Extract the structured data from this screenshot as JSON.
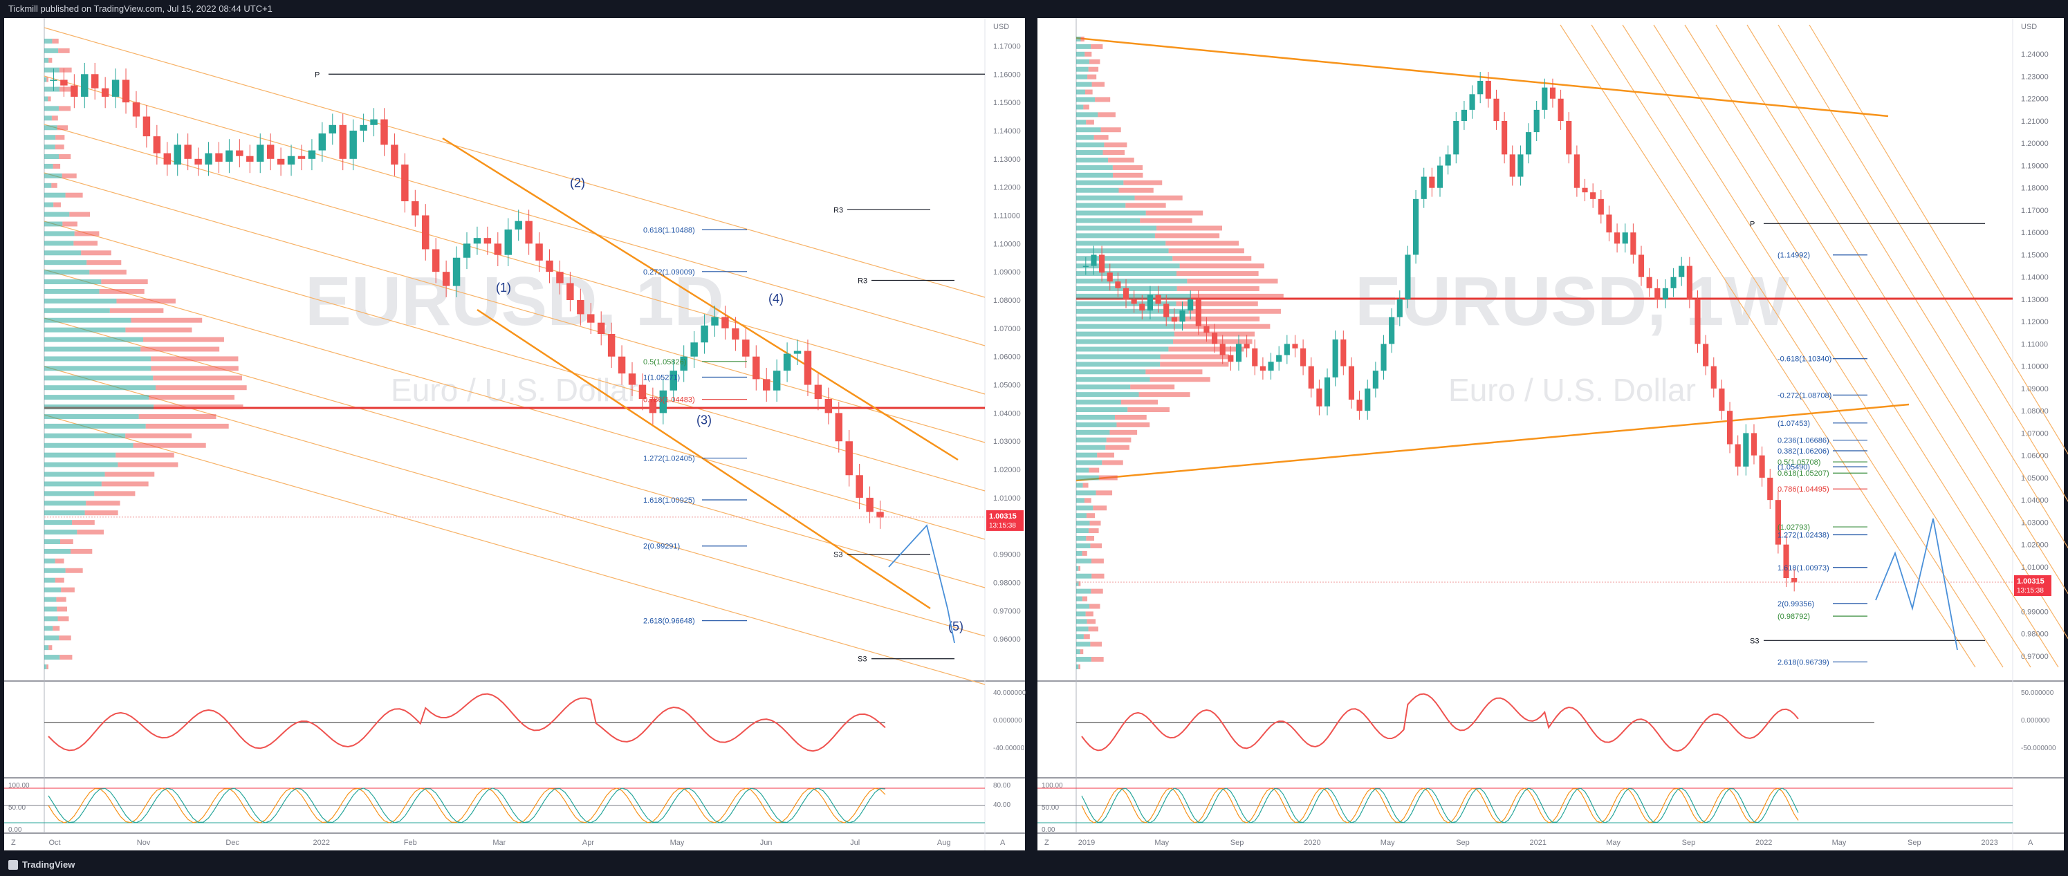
{
  "header": {
    "published_text": "Tickmill published on TradingView.com, Jul 15, 2022 08:44 UTC+1"
  },
  "footer": {
    "brand": "TradingView"
  },
  "colors": {
    "bg": "#131722",
    "panel": "#ffffff",
    "bull": "#26a69a",
    "bear": "#ef5350",
    "orange": "#f7931a",
    "blue": "#2962ff"
  },
  "chart_data": [
    {
      "type": "candlestick",
      "symbol": "EURUSD",
      "timeframe_label": "EURUSD, 1D",
      "watermark_sub": "Euro / U.S. Dollar",
      "currency": "USD",
      "ylim": [
        0.95,
        1.175
      ],
      "y_ticks": [
        "1.17000",
        "1.16000",
        "1.15000",
        "1.14000",
        "1.13000",
        "1.12000",
        "1.11000",
        "1.10000",
        "1.09000",
        "1.08000",
        "1.07000",
        "1.06000",
        "1.05000",
        "1.04000",
        "1.03000",
        "1.02000",
        "1.01000",
        "1.00000",
        "0.99000",
        "0.98000",
        "0.97000",
        "0.96000"
      ],
      "x_ticks": [
        "Oct",
        "Nov",
        "Dec",
        "2022",
        "Feb",
        "Mar",
        "Apr",
        "May",
        "Jun",
        "Jul",
        "Aug"
      ],
      "last_price": "1.00315",
      "countdown": "13:15:38",
      "close": [
        1.158,
        1.156,
        1.152,
        1.16,
        1.155,
        1.152,
        1.158,
        1.15,
        1.145,
        1.138,
        1.132,
        1.128,
        1.135,
        1.13,
        1.128,
        1.132,
        1.129,
        1.133,
        1.131,
        1.129,
        1.135,
        1.13,
        1.128,
        1.131,
        1.13,
        1.133,
        1.139,
        1.142,
        1.13,
        1.14,
        1.142,
        1.144,
        1.135,
        1.128,
        1.115,
        1.11,
        1.098,
        1.09,
        1.085,
        1.095,
        1.1,
        1.102,
        1.1,
        1.096,
        1.105,
        1.108,
        1.1,
        1.094,
        1.09,
        1.086,
        1.08,
        1.075,
        1.072,
        1.068,
        1.06,
        1.054,
        1.05,
        1.045,
        1.04,
        1.048,
        1.055,
        1.06,
        1.065,
        1.071,
        1.074,
        1.07,
        1.066,
        1.06,
        1.052,
        1.048,
        1.055,
        1.061,
        1.062,
        1.05,
        1.045,
        1.04,
        1.03,
        1.018,
        1.01,
        1.005,
        1.003
      ],
      "wave_labels": [
        "(1)",
        "(2)",
        "(3)",
        "(4)",
        "(5)"
      ],
      "fib_levels": [
        "0.618(1.10488)",
        "0.272(1.09009)",
        "0.5(1.05826)",
        "1(1.05271)",
        "0.786(1.04483)",
        "1.272(1.02405)",
        "1.618(1.00925)",
        "2(0.99291)",
        "2.618(0.96648)"
      ],
      "pivots": [
        "P",
        "R3",
        "R3",
        "S3",
        "S3"
      ],
      "osc1_ticks": [
        "40.000000",
        "0.000000",
        "-40.00000"
      ],
      "osc2_ticks": [
        "100.00",
        "50.00",
        "0.00"
      ],
      "osc2_right_ticks": [
        "80.00",
        "40.00"
      ],
      "corner_labels": [
        "Z",
        "A"
      ]
    },
    {
      "type": "candlestick",
      "symbol": "EURUSD",
      "timeframe_label": "EURUSD, 1W",
      "watermark_sub": "Euro / U.S. Dollar",
      "currency": "USD",
      "ylim": [
        0.965,
        1.25
      ],
      "y_ticks": [
        "1.24000",
        "1.23000",
        "1.22000",
        "1.21000",
        "1.20000",
        "1.19000",
        "1.18000",
        "1.17000",
        "1.16000",
        "1.15000",
        "1.14000",
        "1.13000",
        "1.12000",
        "1.11000",
        "1.10000",
        "1.09000",
        "1.08000",
        "1.07000",
        "1.06000",
        "1.05000",
        "1.04000",
        "1.03000",
        "1.02000",
        "1.01000",
        "1.00000",
        "0.99000",
        "0.98000",
        "0.97000"
      ],
      "x_ticks": [
        "2019",
        "May",
        "Sep",
        "2020",
        "May",
        "Sep",
        "2021",
        "May",
        "Sep",
        "2022",
        "May",
        "Sep",
        "2023"
      ],
      "last_price": "1.00315",
      "countdown": "13:15:38",
      "close": [
        1.145,
        1.15,
        1.142,
        1.138,
        1.135,
        1.13,
        1.128,
        1.125,
        1.132,
        1.128,
        1.122,
        1.12,
        1.125,
        1.13,
        1.118,
        1.115,
        1.11,
        1.105,
        1.102,
        1.11,
        1.108,
        1.1,
        1.098,
        1.102,
        1.105,
        1.11,
        1.108,
        1.1,
        1.09,
        1.082,
        1.095,
        1.112,
        1.1,
        1.085,
        1.08,
        1.09,
        1.098,
        1.11,
        1.122,
        1.13,
        1.15,
        1.175,
        1.185,
        1.18,
        1.19,
        1.195,
        1.21,
        1.215,
        1.222,
        1.228,
        1.22,
        1.21,
        1.195,
        1.185,
        1.195,
        1.205,
        1.215,
        1.225,
        1.22,
        1.21,
        1.195,
        1.18,
        1.178,
        1.175,
        1.168,
        1.16,
        1.155,
        1.16,
        1.15,
        1.14,
        1.135,
        1.13,
        1.135,
        1.14,
        1.145,
        1.13,
        1.11,
        1.1,
        1.09,
        1.08,
        1.065,
        1.055,
        1.07,
        1.06,
        1.05,
        1.04,
        1.02,
        1.005,
        1.003
      ],
      "fib_levels": [
        "(1.14992)",
        "-0.618(1.10340)",
        "-0.272(1.08708)",
        "(1.07453)",
        "0.236(1.06686)",
        "0.382(1.06206)",
        "0.5(1.05708)",
        "(1.05490)",
        "0.618(1.05207)",
        "0.786(1.04495)",
        "(1.02793)",
        "1.272(1.02438)",
        "1.618(1.00973)",
        "2(0.99356)",
        "(0.98792)",
        "2.618(0.96739)"
      ],
      "pivots": [
        "P",
        "S3"
      ],
      "osc1_ticks": [
        "50.000000",
        "0.000000",
        "-50.000000"
      ],
      "osc2_ticks": [
        "100.00",
        "50.00",
        "0.00"
      ],
      "corner_labels": [
        "Z",
        "A"
      ]
    }
  ]
}
